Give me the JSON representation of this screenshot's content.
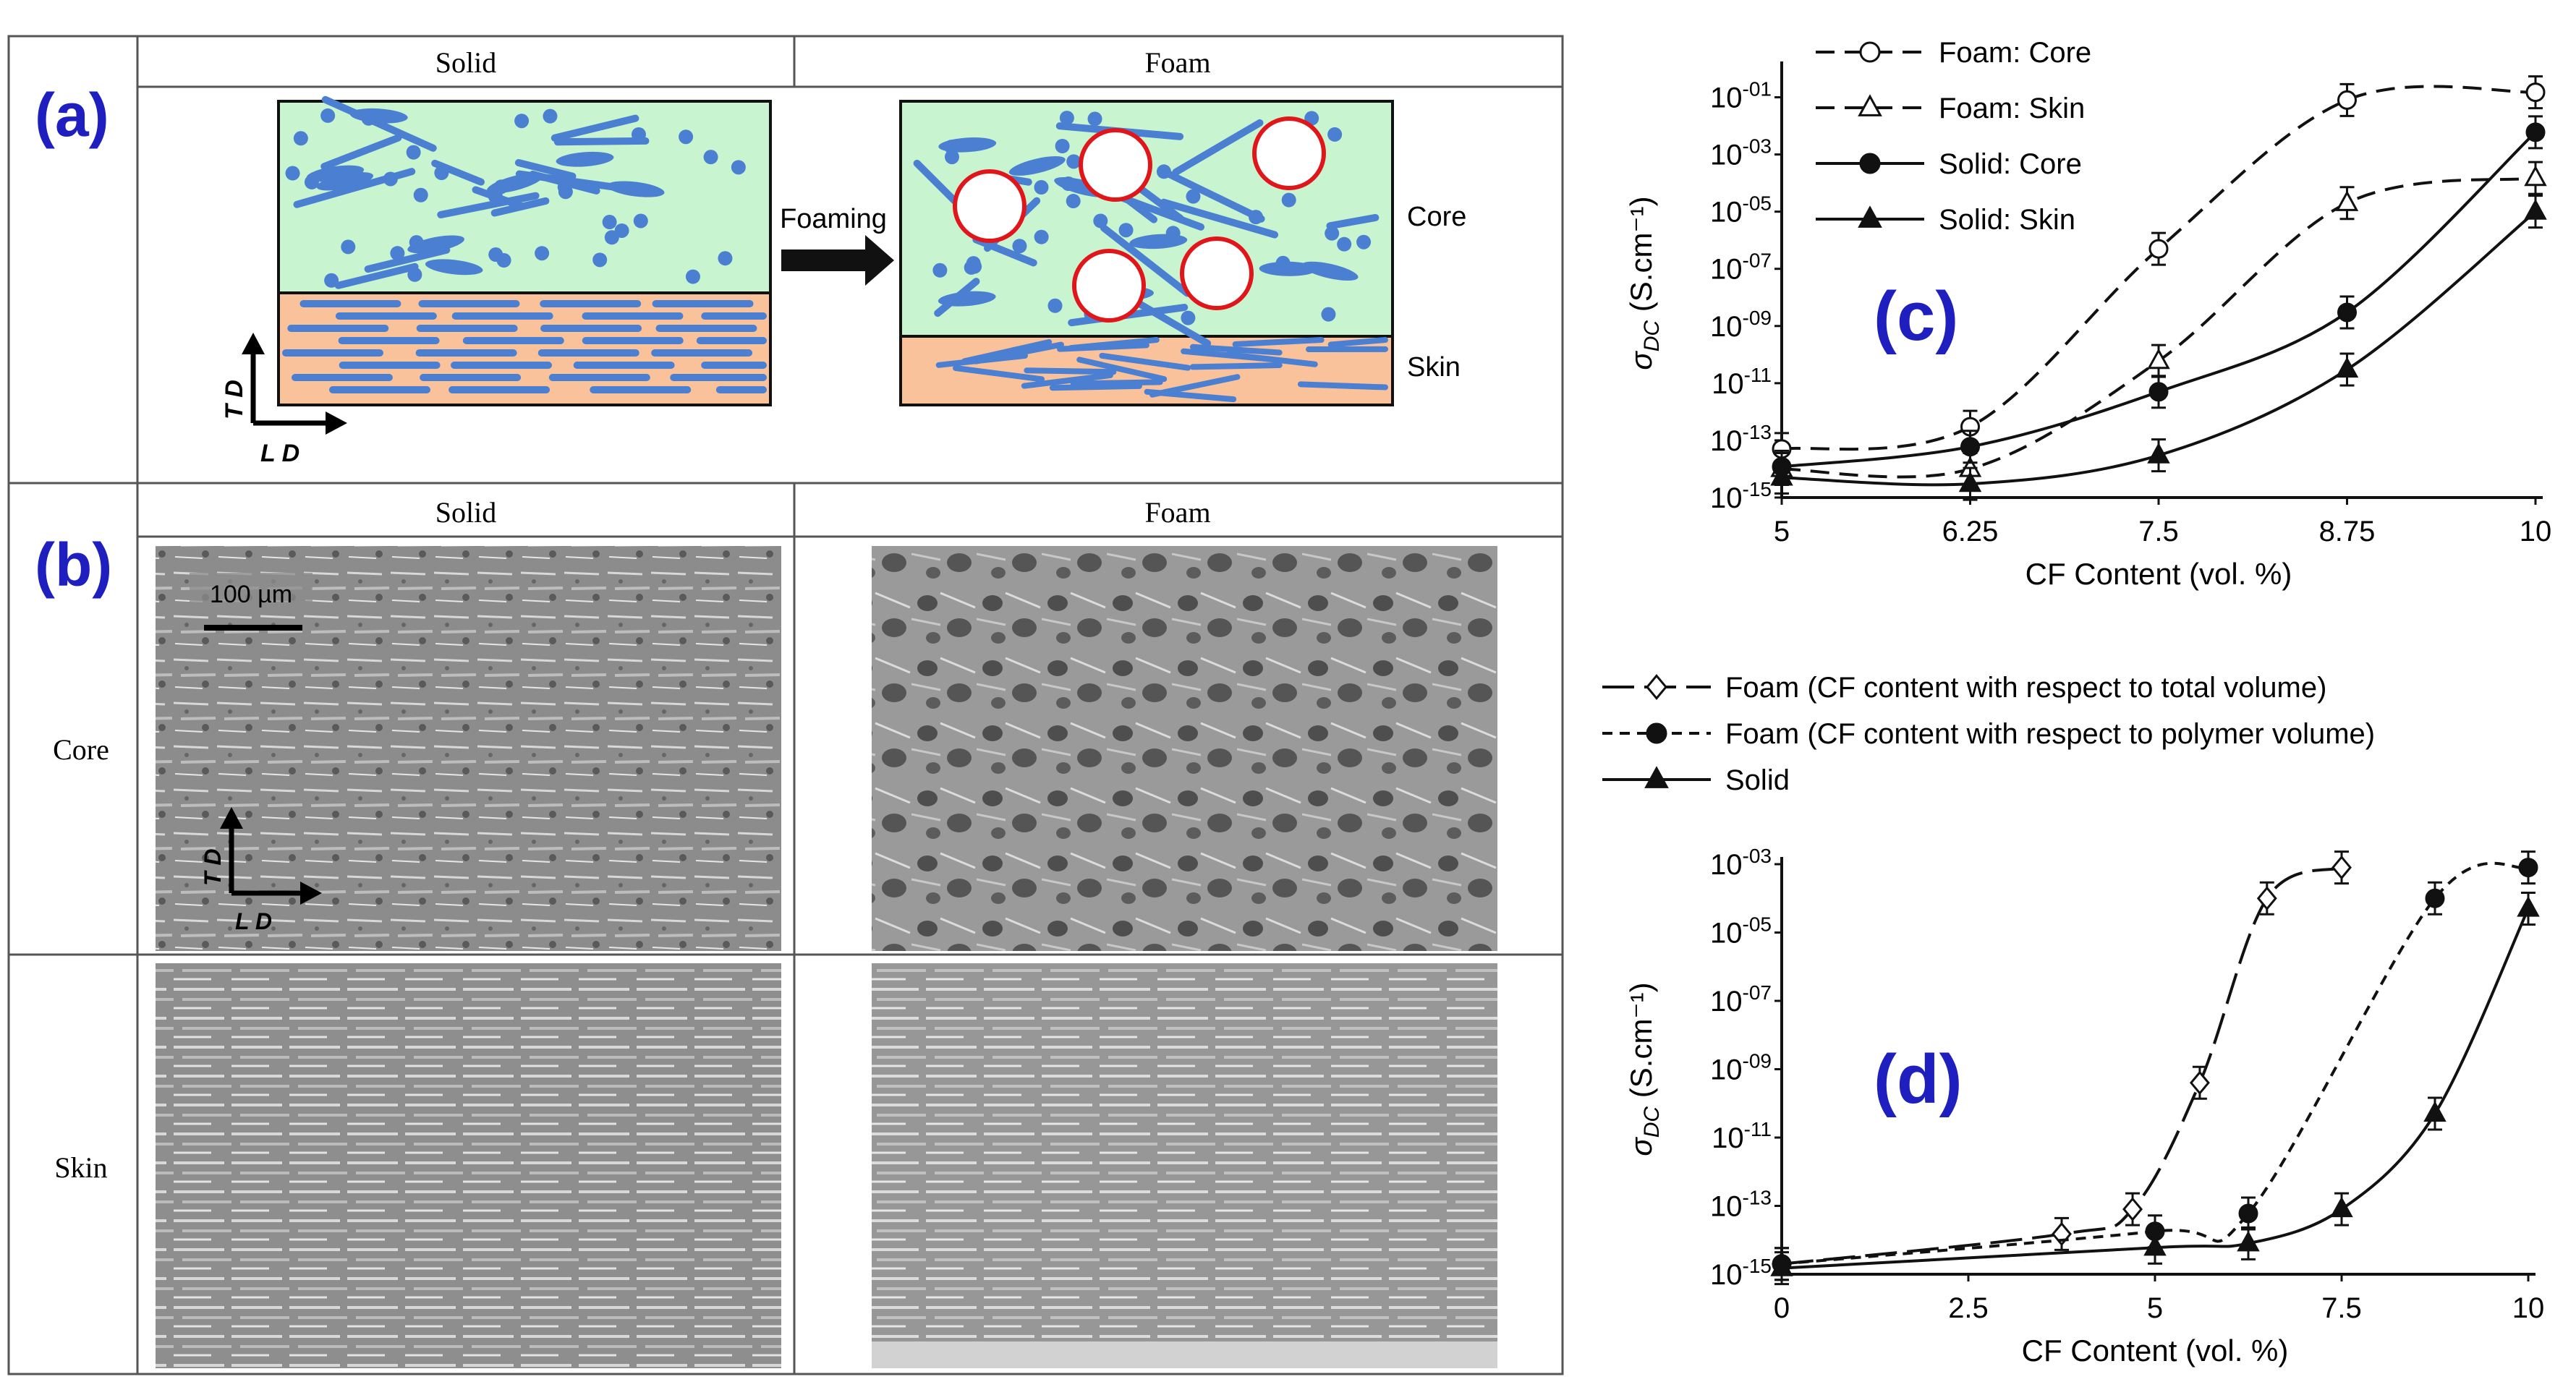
{
  "colors": {
    "panel_letter": "#1f1fbf",
    "core_fill": "#c8f5d0",
    "skin_fill": "#f9c29a",
    "fiber": "#4a7fd1",
    "bubble_edge": "#e0161b",
    "sem_base": "#8a8a8a"
  },
  "panel_a": {
    "letter": "(a)",
    "col_solid": "Solid",
    "col_foam": "Foam",
    "foaming_label": "Foaming",
    "core_label": "Core",
    "skin_label": "Skin",
    "axis_td": "T D",
    "axis_ld": "L D"
  },
  "panel_b": {
    "letter": "(b)",
    "col_solid": "Solid",
    "col_foam": "Foam",
    "row_core": "Core",
    "row_skin": "Skin",
    "scale_bar": "100 µm",
    "axis_td": "T D",
    "axis_ld": "L D"
  },
  "chart_data": [
    {
      "type": "line",
      "letter": "(c)",
      "xlabel": "CF Content (vol. %)",
      "ylabel": "σDC (S.cm⁻¹)",
      "y_scale": "log",
      "x_ticks": [
        "5",
        "6.25",
        "7.5",
        "8.75",
        "10"
      ],
      "y_ticks": [
        "10-15",
        "10-13",
        "10-11",
        "10-09",
        "10-07",
        "10-05",
        "10-03",
        "10-01"
      ],
      "xlim": [
        5,
        10
      ],
      "ylim": [
        1e-15,
        1
      ],
      "legend_position": "top-left",
      "x": [
        5,
        6.25,
        7.5,
        8.75,
        10
      ],
      "series": [
        {
          "name": "Foam: Core",
          "line": "dashed",
          "marker": "open-circle",
          "values": [
            5e-14,
            3e-13,
            5e-07,
            0.08,
            0.15
          ]
        },
        {
          "name": "Foam: Skin",
          "line": "dashed",
          "marker": "open-triangle",
          "values": [
            1e-14,
            1e-14,
            6e-11,
            2e-05,
            0.00015
          ]
        },
        {
          "name": "Solid: Core",
          "line": "solid",
          "marker": "filled-circle",
          "values": [
            1.2e-14,
            6e-14,
            5e-12,
            3e-09,
            0.006
          ]
        },
        {
          "name": "Solid: Skin",
          "line": "solid",
          "marker": "filled-triangle",
          "values": [
            5e-15,
            3e-15,
            3e-14,
            3e-11,
            1e-05
          ]
        }
      ]
    },
    {
      "type": "line",
      "letter": "(d)",
      "xlabel": "CF Content (vol. %)",
      "ylabel": "σDC (S.cm⁻¹)",
      "y_scale": "log",
      "x_ticks": [
        "0",
        "2.5",
        "5",
        "7.5",
        "10"
      ],
      "y_ticks": [
        "10-15",
        "10-13",
        "10-11",
        "10-09",
        "10-07",
        "10-05",
        "10-03"
      ],
      "xlim": [
        0,
        10
      ],
      "ylim": [
        1e-15,
        0.001
      ],
      "legend_position": "top-left",
      "series": [
        {
          "name": "Foam (CF content with respect to total volume)",
          "line": "long-dash",
          "marker": "diamond",
          "x": [
            0,
            3.75,
            4.7,
            5.6,
            6.5,
            7.5
          ],
          "values": [
            2e-15,
            1.5e-14,
            8e-14,
            4e-10,
            0.0001,
            0.0008
          ]
        },
        {
          "name": "Foam (CF content with respect to polymer volume)",
          "line": "short-dash",
          "marker": "filled-circle",
          "x": [
            0,
            5,
            6.25,
            8.75,
            10
          ],
          "values": [
            2e-15,
            1.8e-14,
            6e-14,
            0.0001,
            0.0008
          ]
        },
        {
          "name": "Solid",
          "line": "solid",
          "marker": "filled-triangle",
          "x": [
            0,
            5,
            6.25,
            7.5,
            8.75,
            10
          ],
          "values": [
            1.5e-15,
            6e-15,
            8e-15,
            8e-14,
            5e-11,
            5e-05
          ]
        }
      ]
    }
  ]
}
